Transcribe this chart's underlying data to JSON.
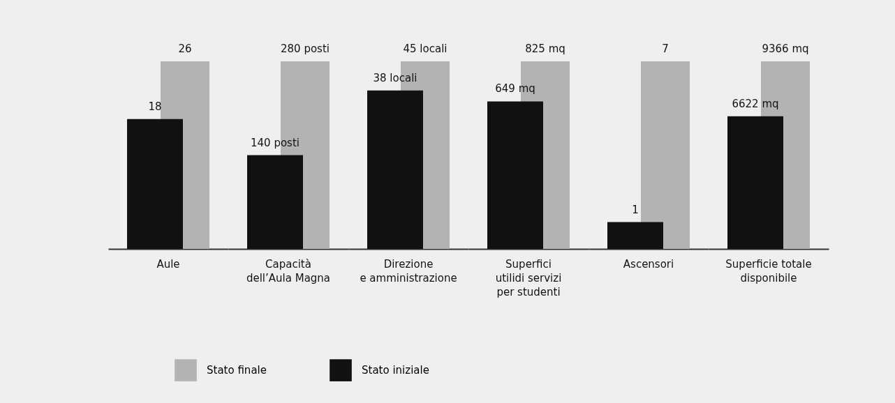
{
  "chart_data": [
    {
      "type": "bar",
      "legend": "bottom right",
      "categories": [
        "Aule"
      ],
      "series": [
        {
          "name": "Stato finale",
          "color": "#b3b3b3",
          "values": [
            26
          ],
          "value_labels": [
            "26"
          ]
        },
        {
          "name": "Stato iniziale",
          "color": "#111111",
          "values": [
            18
          ],
          "value_labels": [
            "18"
          ]
        }
      ]
    },
    {
      "type": "bar",
      "categories": [
        "Capacità\ndell’Aula Magna"
      ],
      "series": [
        {
          "color": "#b3b3b3",
          "values": [
            280
          ],
          "value_labels": [
            "280 posti"
          ]
        },
        {
          "color": "#111111",
          "values": [
            140
          ],
          "value_labels": [
            "140 posti"
          ]
        }
      ]
    },
    {
      "type": "bar",
      "categories": [
        "Direzione\ne amministrazione"
      ],
      "series": [
        {
          "color": "#b3b3b3",
          "values": [
            45
          ],
          "value_labels": [
            "45 locali"
          ]
        },
        {
          "color": "#111111",
          "values": [
            38
          ],
          "value_labels": [
            "38 locali"
          ]
        }
      ]
    },
    {
      "type": "bar",
      "categories": [
        "Superfici\nutilidi servizi\nper studenti"
      ],
      "series": [
        {
          "color": "#b3b3b3",
          "values": [
            825
          ],
          "value_labels": [
            "825 mq"
          ]
        },
        {
          "color": "#111111",
          "values": [
            649
          ],
          "value_labels": [
            "649 mq"
          ]
        }
      ]
    },
    {
      "type": "bar",
      "categories": [
        "Ascensori"
      ],
      "series": [
        {
          "color": "#b3b3b3",
          "values": [
            7
          ],
          "value_labels": [
            "7"
          ]
        },
        {
          "color": "#111111",
          "values": [
            1
          ],
          "value_labels": [
            "1"
          ]
        }
      ]
    },
    {
      "type": "bar",
      "categories": [
        "Superficie totale\ndisponibile"
      ],
      "series": [
        {
          "color": "#b3b3b3",
          "values": [
            9366
          ],
          "value_labels": [
            "9366 mq"
          ]
        },
        {
          "color": "#111111",
          "values": [
            6622
          ],
          "value_labels": [
            "6622 mq"
          ]
        }
      ]
    }
  ]
}
